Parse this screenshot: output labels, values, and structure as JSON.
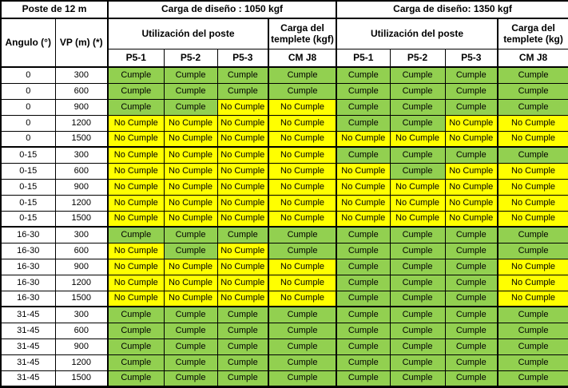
{
  "title_row": {
    "poste": "Poste de 12 m",
    "carga_left": "Carga de diseño : 1050 kgf",
    "carga_right": "Carga de diseño: 1350 kgf"
  },
  "header_row": {
    "angulo": "Angulo (°)",
    "vp": "VP (m) (*)",
    "utilizacion_left": "Utilización del poste",
    "templete_left": "Carga del templete (kgf)",
    "utilizacion_right": "Utilización del poste",
    "templete_right": "Carga del templete (kg)"
  },
  "subheader_row": {
    "left": [
      "P5-1",
      "P5-2",
      "P5-3",
      "CM J8"
    ],
    "right": [
      "P5-1",
      "P5-2",
      "P5-3",
      "CM J8"
    ]
  },
  "legend": {
    "pass_label": "Cumple",
    "fail_label": "No Cumple"
  },
  "colors": {
    "pass_bg": "#92D050",
    "fail_bg": "#FFFF00",
    "grid": "#000000"
  },
  "rows": [
    {
      "angulo": "0",
      "vp": "300",
      "results": [
        1,
        1,
        1,
        1,
        1,
        1,
        1,
        1
      ]
    },
    {
      "angulo": "0",
      "vp": "600",
      "results": [
        1,
        1,
        1,
        1,
        1,
        1,
        1,
        1
      ]
    },
    {
      "angulo": "0",
      "vp": "900",
      "results": [
        1,
        1,
        0,
        0,
        1,
        1,
        1,
        1
      ]
    },
    {
      "angulo": "0",
      "vp": "1200",
      "results": [
        0,
        0,
        0,
        0,
        1,
        1,
        0,
        0
      ]
    },
    {
      "angulo": "0",
      "vp": "1500",
      "results": [
        0,
        0,
        0,
        0,
        0,
        0,
        0,
        0
      ]
    },
    {
      "angulo": "0-15",
      "vp": "300",
      "results": [
        0,
        0,
        0,
        0,
        1,
        1,
        1,
        1
      ]
    },
    {
      "angulo": "0-15",
      "vp": "600",
      "results": [
        0,
        0,
        0,
        0,
        0,
        1,
        0,
        0
      ]
    },
    {
      "angulo": "0-15",
      "vp": "900",
      "results": [
        0,
        0,
        0,
        0,
        0,
        0,
        0,
        0
      ]
    },
    {
      "angulo": "0-15",
      "vp": "1200",
      "results": [
        0,
        0,
        0,
        0,
        0,
        0,
        0,
        0
      ]
    },
    {
      "angulo": "0-15",
      "vp": "1500",
      "results": [
        0,
        0,
        0,
        0,
        0,
        0,
        0,
        0
      ]
    },
    {
      "angulo": "16-30",
      "vp": "300",
      "results": [
        1,
        1,
        1,
        1,
        1,
        1,
        1,
        1
      ]
    },
    {
      "angulo": "16-30",
      "vp": "600",
      "results": [
        0,
        1,
        0,
        1,
        1,
        1,
        1,
        1
      ]
    },
    {
      "angulo": "16-30",
      "vp": "900",
      "results": [
        0,
        0,
        0,
        0,
        1,
        1,
        1,
        0
      ]
    },
    {
      "angulo": "16-30",
      "vp": "1200",
      "results": [
        0,
        0,
        0,
        0,
        1,
        1,
        1,
        0
      ]
    },
    {
      "angulo": "16-30",
      "vp": "1500",
      "results": [
        0,
        0,
        0,
        0,
        1,
        1,
        1,
        0
      ]
    },
    {
      "angulo": "31-45",
      "vp": "300",
      "results": [
        1,
        1,
        1,
        1,
        1,
        1,
        1,
        1
      ]
    },
    {
      "angulo": "31-45",
      "vp": "600",
      "results": [
        1,
        1,
        1,
        1,
        1,
        1,
        1,
        1
      ]
    },
    {
      "angulo": "31-45",
      "vp": "900",
      "results": [
        1,
        1,
        1,
        1,
        1,
        1,
        1,
        1
      ]
    },
    {
      "angulo": "31-45",
      "vp": "1200",
      "results": [
        1,
        1,
        1,
        1,
        1,
        1,
        1,
        1
      ]
    },
    {
      "angulo": "31-45",
      "vp": "1500",
      "results": [
        1,
        1,
        1,
        1,
        1,
        1,
        1,
        1
      ]
    }
  ]
}
